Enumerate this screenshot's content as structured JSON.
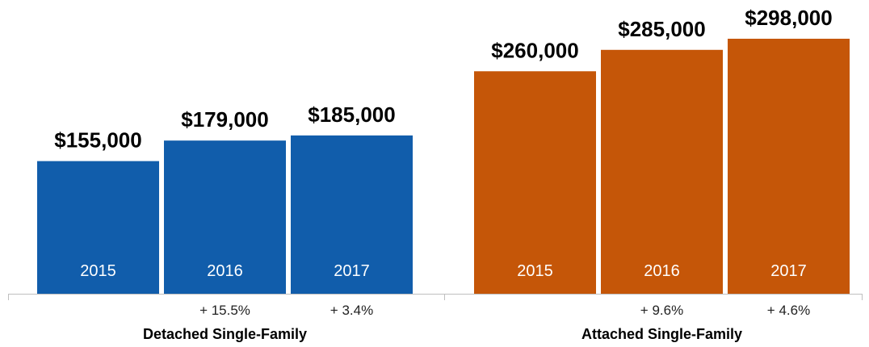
{
  "chart_data": {
    "type": "bar",
    "title": "",
    "xlabel": "",
    "ylabel": "",
    "ylim": [
      0,
      298000
    ],
    "grid": false,
    "legend": "none",
    "groups": [
      {
        "name": "Detached Single-Family",
        "color": "#115dab",
        "categories": [
          "2015",
          "2016",
          "2017"
        ],
        "values": [
          155000,
          179000,
          185000
        ],
        "value_labels": [
          "$155,000",
          "$179,000",
          "$185,000"
        ],
        "changes": [
          "",
          "+ 15.5%",
          "+ 3.4%"
        ]
      },
      {
        "name": "Attached Single-Family",
        "color": "#c55608",
        "categories": [
          "2015",
          "2016",
          "2017"
        ],
        "values": [
          260000,
          285000,
          298000
        ],
        "value_labels": [
          "$260,000",
          "$285,000",
          "$298,000"
        ],
        "changes": [
          "",
          "+ 9.6%",
          "+ 4.6%"
        ]
      }
    ]
  }
}
